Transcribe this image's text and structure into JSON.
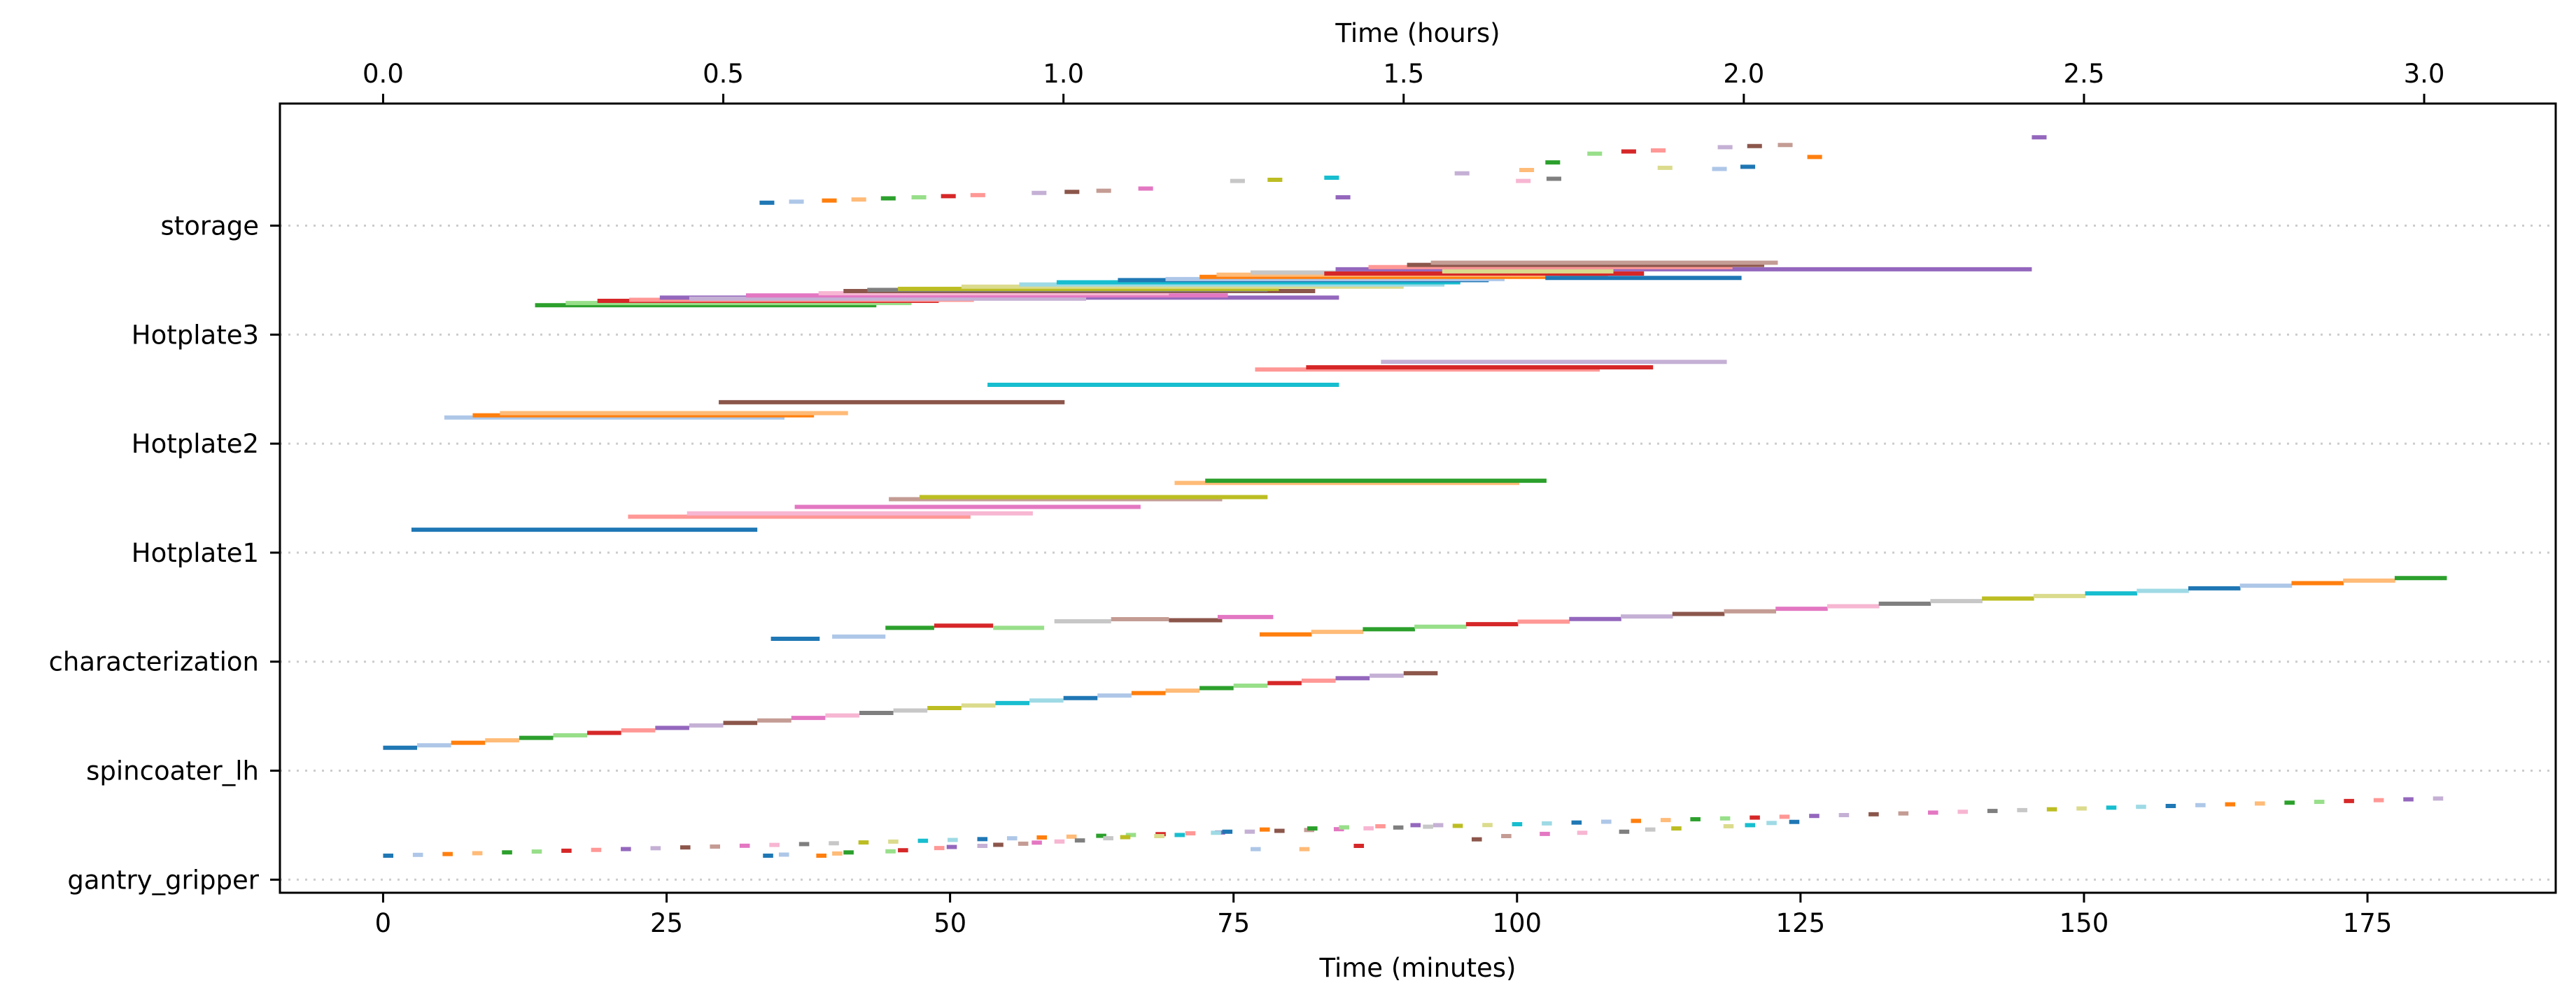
{
  "chart_data": {
    "type": "gantt",
    "xlabel": "Time (minutes)",
    "x2label": "Time (hours)",
    "xlim": [
      -9.1,
      191.6
    ],
    "ylim": [
      -0.12,
      7.12
    ],
    "xticks": [
      "0",
      "25",
      "50",
      "75",
      "100",
      "125",
      "150",
      "175"
    ],
    "xtick_values": [
      0,
      25,
      50,
      75,
      100,
      125,
      150,
      175
    ],
    "x2ticks": [
      "0.0",
      "0.5",
      "1.0",
      "1.5",
      "2.0",
      "2.5",
      "3.0"
    ],
    "x2tick_values": [
      0,
      0.5,
      1.0,
      1.5,
      2.0,
      2.5,
      3.0
    ],
    "categories": [
      "gantry_gripper",
      "spincoater_lh",
      "characterization",
      "Hotplate1",
      "Hotplate2",
      "Hotplate3",
      "storage"
    ],
    "grid": "horizontal dotted at each category",
    "palette": [
      "#1f77b4",
      "#aec7e8",
      "#ff7f0e",
      "#ffbb78",
      "#2ca02c",
      "#98df8a",
      "#d62728",
      "#ff9896",
      "#9467bd",
      "#c5b0d5",
      "#8c564b",
      "#c49c94",
      "#e377c2",
      "#f7b6d2",
      "#7f7f7f",
      "#c7c7c7",
      "#bcbd22",
      "#dbdb8d",
      "#17becf",
      "#9edae5"
    ],
    "tasks": {
      "gantry_gripper_a": {
        "start": 0.0,
        "step": 2.62,
        "count": 70,
        "dur": 0.9,
        "y0": 0.22,
        "dy": 0.0076
      },
      "gantry_gripper_b": [
        [
          33.5,
          0.22
        ],
        [
          34.9,
          0.23
        ],
        [
          38.2,
          0.22
        ],
        [
          39.6,
          0.24
        ],
        [
          40.6,
          0.25
        ],
        [
          44.3,
          0.26
        ],
        [
          45.4,
          0.27
        ],
        [
          48.6,
          0.29
        ],
        [
          49.7,
          0.3
        ],
        [
          52.4,
          0.31
        ],
        [
          53.8,
          0.32
        ],
        [
          56.0,
          0.33
        ],
        [
          57.2,
          0.34
        ],
        [
          59.2,
          0.35
        ],
        [
          61.0,
          0.36
        ],
        [
          63.5,
          0.38
        ],
        [
          65.0,
          0.39
        ],
        [
          68.0,
          0.4
        ],
        [
          69.8,
          0.41
        ],
        [
          73.0,
          0.43
        ],
        [
          74.0,
          0.44
        ],
        [
          76.5,
          0.28
        ],
        [
          77.3,
          0.46
        ],
        [
          80.8,
          0.28
        ],
        [
          81.5,
          0.47
        ],
        [
          84.3,
          0.48
        ],
        [
          85.6,
          0.31
        ],
        [
          87.5,
          0.49
        ],
        [
          90.6,
          0.5
        ],
        [
          92.6,
          0.5
        ],
        [
          96.0,
          0.37
        ],
        [
          98.6,
          0.4
        ],
        [
          102.0,
          0.42
        ],
        [
          105.3,
          0.43
        ],
        [
          109.0,
          0.44
        ],
        [
          111.3,
          0.46
        ],
        [
          113.6,
          0.47
        ],
        [
          118.2,
          0.49
        ],
        [
          120.1,
          0.5
        ],
        [
          122.0,
          0.52
        ],
        [
          124.0,
          0.53
        ]
      ],
      "spincoater_lh": {
        "start": 0.0,
        "step": 3.0,
        "count": 31,
        "dur": 3.0,
        "y0": 1.21,
        "dy": 0.0228
      },
      "characterization_a": [
        [
          34.2,
          38.5,
          2.21,
          0
        ],
        [
          39.6,
          44.3,
          2.23,
          1
        ],
        [
          44.3,
          48.6,
          2.31,
          4
        ],
        [
          48.6,
          53.8,
          2.33,
          6
        ],
        [
          53.8,
          58.3,
          2.31,
          5
        ],
        [
          59.2,
          64.2,
          2.37,
          15
        ],
        [
          64.2,
          69.3,
          2.39,
          11
        ],
        [
          69.3,
          74.0,
          2.38,
          10
        ],
        [
          73.6,
          78.5,
          2.41,
          12
        ]
      ],
      "characterization_b": {
        "start": 77.3,
        "step": 4.55,
        "count": 23,
        "dur": 4.6,
        "y0": 2.25,
        "dy": 0.0235
      },
      "Hotplate1": [
        [
          2.5,
          33.0,
          3.21,
          0
        ],
        [
          21.6,
          51.8,
          3.33,
          7
        ],
        [
          26.8,
          57.3,
          3.36,
          13
        ],
        [
          36.3,
          66.8,
          3.42,
          12
        ],
        [
          44.6,
          74.0,
          3.49,
          11
        ],
        [
          47.3,
          78.0,
          3.51,
          16
        ],
        [
          69.8,
          100.2,
          3.64,
          3
        ],
        [
          72.5,
          102.6,
          3.66,
          4
        ]
      ],
      "Hotplate2": [
        [
          5.4,
          35.4,
          4.24,
          1
        ],
        [
          7.9,
          38.0,
          4.26,
          2
        ],
        [
          10.3,
          41.0,
          4.28,
          3
        ],
        [
          29.6,
          60.1,
          4.38,
          10
        ],
        [
          53.3,
          84.3,
          4.54,
          18
        ],
        [
          76.9,
          107.3,
          4.68,
          7
        ],
        [
          81.4,
          112.0,
          4.7,
          6
        ],
        [
          88.0,
          118.5,
          4.75,
          9
        ]
      ],
      "Hotplate3": [
        [
          13.4,
          43.5,
          5.27,
          4
        ],
        [
          16.1,
          46.6,
          5.29,
          5
        ],
        [
          18.9,
          49.0,
          5.31,
          6
        ],
        [
          21.7,
          52.1,
          5.32,
          7
        ],
        [
          24.4,
          84.3,
          5.34,
          8
        ],
        [
          27.0,
          62.0,
          5.33,
          9
        ],
        [
          32.0,
          74.5,
          5.36,
          12
        ],
        [
          38.4,
          69.3,
          5.38,
          13
        ],
        [
          40.6,
          82.2,
          5.4,
          10
        ],
        [
          42.7,
          78.0,
          5.41,
          14
        ],
        [
          45.4,
          79.0,
          5.42,
          16
        ],
        [
          51.0,
          90.0,
          5.44,
          17
        ],
        [
          56.1,
          93.6,
          5.46,
          19
        ],
        [
          59.4,
          95.0,
          5.48,
          18
        ],
        [
          64.8,
          97.5,
          5.5,
          0
        ],
        [
          69.0,
          98.9,
          5.51,
          1
        ],
        [
          72.0,
          108.0,
          5.53,
          2
        ],
        [
          73.5,
          103.8,
          5.55,
          3
        ],
        [
          76.5,
          106.5,
          5.57,
          15
        ],
        [
          84.0,
          145.4,
          5.6,
          8
        ],
        [
          86.9,
          119.0,
          5.62,
          7
        ],
        [
          90.3,
          121.8,
          5.64,
          10
        ],
        [
          92.4,
          123.0,
          5.66,
          11
        ],
        [
          83.0,
          111.2,
          5.56,
          6
        ],
        [
          93.4,
          108.5,
          5.58,
          17
        ],
        [
          102.5,
          119.8,
          5.52,
          0
        ]
      ],
      "storage": [
        [
          33.2,
          6.21,
          0
        ],
        [
          35.8,
          6.22,
          1
        ],
        [
          38.7,
          6.23,
          2
        ],
        [
          41.3,
          6.24,
          3
        ],
        [
          43.9,
          6.25,
          4
        ],
        [
          46.6,
          6.26,
          5
        ],
        [
          49.2,
          6.27,
          6
        ],
        [
          51.8,
          6.28,
          7
        ],
        [
          57.2,
          6.3,
          9
        ],
        [
          60.1,
          6.31,
          10
        ],
        [
          62.9,
          6.32,
          11
        ],
        [
          66.6,
          6.34,
          12
        ],
        [
          74.7,
          6.41,
          15
        ],
        [
          78.0,
          6.42,
          16
        ],
        [
          83.0,
          6.44,
          18
        ],
        [
          84.0,
          6.26,
          8
        ],
        [
          94.5,
          6.48,
          9
        ],
        [
          100.2,
          6.51,
          3
        ],
        [
          102.5,
          6.58,
          4
        ],
        [
          99.9,
          6.41,
          13
        ],
        [
          102.6,
          6.43,
          14
        ],
        [
          106.2,
          6.66,
          5
        ],
        [
          109.2,
          6.68,
          6
        ],
        [
          111.8,
          6.69,
          7
        ],
        [
          112.4,
          6.53,
          17
        ],
        [
          117.2,
          6.52,
          1
        ],
        [
          119.7,
          6.54,
          0
        ],
        [
          117.7,
          6.72,
          9
        ],
        [
          120.3,
          6.73,
          10
        ],
        [
          123.0,
          6.74,
          11
        ],
        [
          125.6,
          6.63,
          2
        ],
        [
          145.4,
          6.81,
          8
        ]
      ]
    }
  }
}
